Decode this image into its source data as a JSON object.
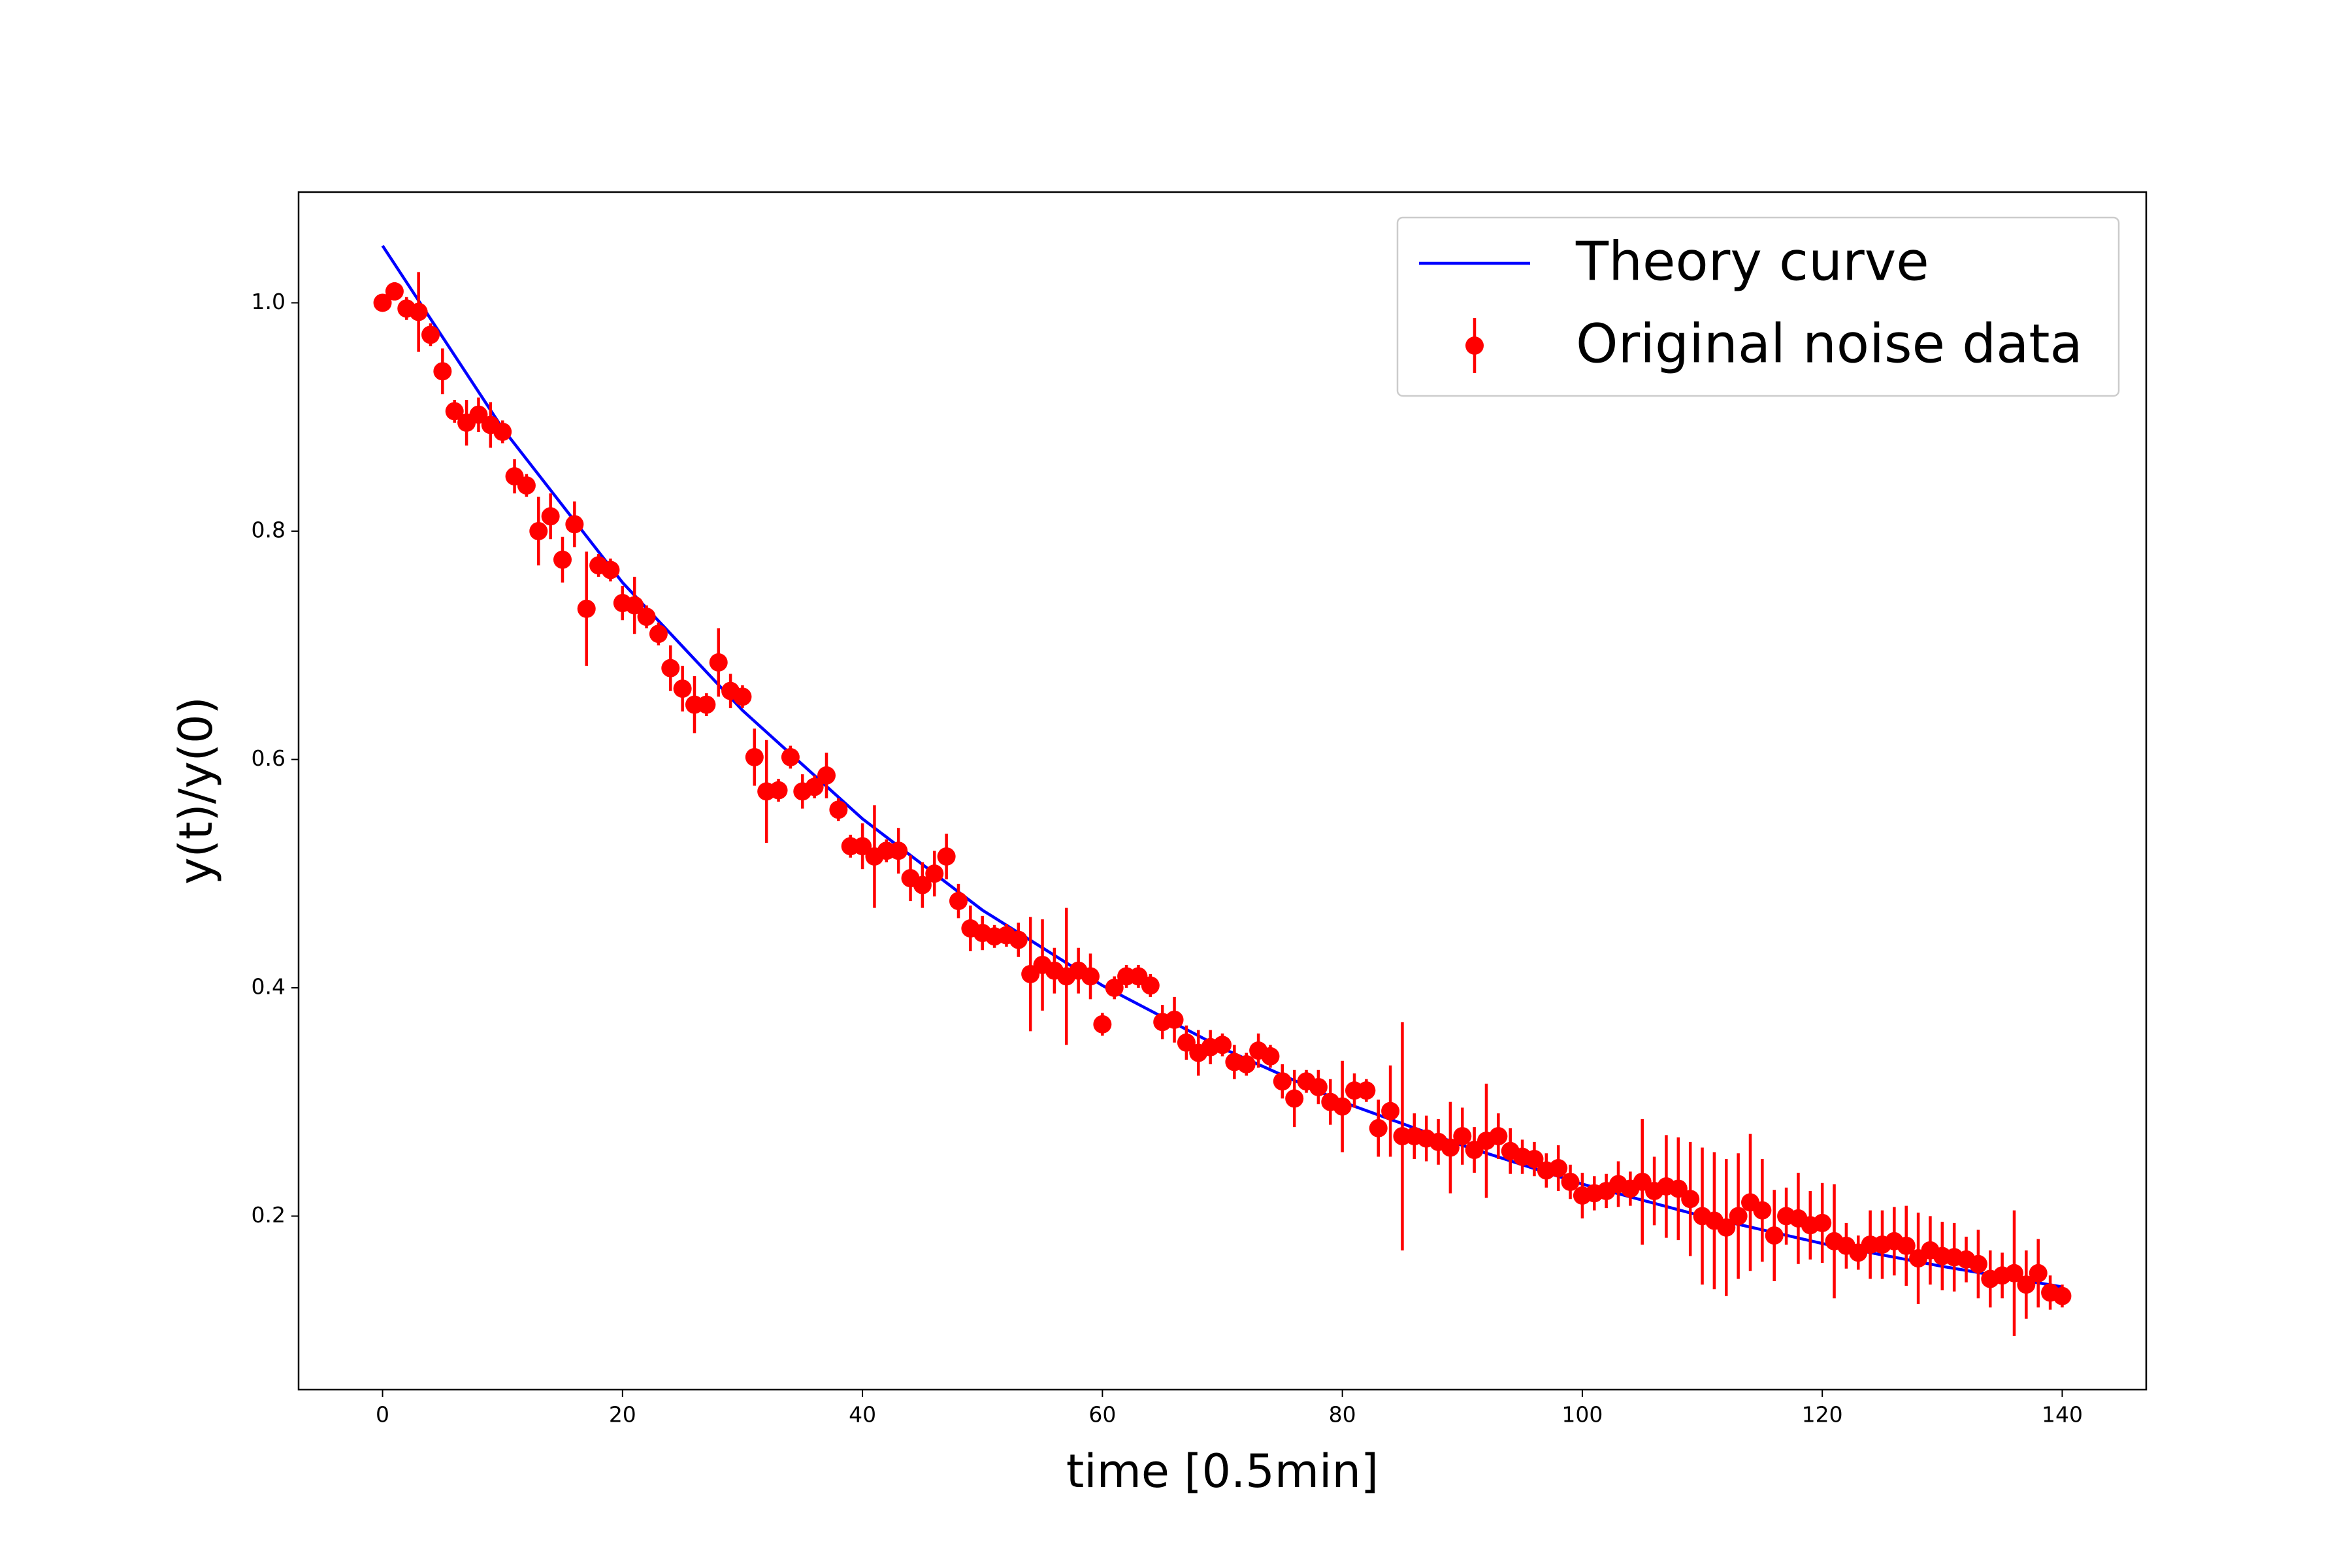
{
  "chart_data": {
    "type": "scatter",
    "xlabel": "time [0.5min]",
    "ylabel": "y(t)/y(0)",
    "xlim": [
      -7,
      147
    ],
    "ylim": [
      0.048,
      1.097
    ],
    "xticks": [
      0,
      20,
      40,
      60,
      80,
      100,
      120,
      140
    ],
    "yticks": [
      0.2,
      0.4,
      0.6,
      0.8,
      {
        "value": 1,
        "label": "1.0"
      }
    ],
    "legend": "upper right",
    "series": [
      {
        "name": "Theory curve",
        "type": "line",
        "color": "#0000ff",
        "x": [
          0,
          10,
          20,
          30,
          40,
          50,
          60,
          70,
          80,
          90,
          100,
          110,
          120,
          130,
          140
        ],
        "values": [
          1.05,
          0.89,
          0.755,
          0.643,
          0.548,
          0.468,
          0.402,
          0.347,
          0.3,
          0.262,
          0.228,
          0.2,
          0.176,
          0.156,
          0.138
        ]
      },
      {
        "name": "Original noise data",
        "type": "errorbar",
        "color": "#ff0000",
        "x": [
          0,
          1,
          2,
          3,
          4,
          5,
          6,
          7,
          8,
          9,
          10,
          11,
          12,
          13,
          14,
          15,
          16,
          17,
          18,
          19,
          20,
          21,
          22,
          23,
          24,
          25,
          26,
          27,
          28,
          29,
          30,
          31,
          32,
          33,
          34,
          35,
          36,
          37,
          38,
          39,
          40,
          41,
          42,
          43,
          44,
          45,
          46,
          47,
          48,
          49,
          50,
          51,
          52,
          53,
          54,
          55,
          56,
          57,
          58,
          59,
          60,
          61,
          62,
          63,
          64,
          65,
          66,
          67,
          68,
          69,
          70,
          71,
          72,
          73,
          74,
          75,
          76,
          77,
          78,
          79,
          80,
          81,
          82,
          83,
          84,
          85,
          86,
          87,
          88,
          89,
          90,
          91,
          92,
          93,
          94,
          95,
          96,
          97,
          98,
          99,
          100,
          101,
          102,
          103,
          104,
          105,
          106,
          107,
          108,
          109,
          110,
          111,
          112,
          113,
          114,
          115,
          116,
          117,
          118,
          119,
          120,
          121,
          122,
          123,
          124,
          125,
          126,
          127,
          128,
          129,
          130,
          131,
          132,
          133,
          134,
          135,
          136,
          137,
          138,
          139,
          140
        ],
        "values": [
          1.0,
          1.01,
          0.995,
          0.992,
          0.972,
          0.94,
          0.905,
          0.895,
          0.902,
          0.893,
          0.887,
          0.848,
          0.84,
          0.8,
          0.813,
          0.775,
          0.806,
          0.732,
          0.77,
          0.766,
          0.737,
          0.735,
          0.725,
          0.71,
          0.68,
          0.662,
          0.648,
          0.648,
          0.685,
          0.66,
          0.655,
          0.602,
          0.572,
          0.573,
          0.602,
          0.572,
          0.576,
          0.586,
          0.556,
          0.524,
          0.524,
          0.515,
          0.52,
          0.52,
          0.496,
          0.49,
          0.5,
          0.515,
          0.476,
          0.452,
          0.448,
          0.445,
          0.446,
          0.442,
          0.412,
          0.42,
          0.415,
          0.41,
          0.415,
          0.41,
          0.368,
          0.4,
          0.41,
          0.41,
          0.402,
          0.37,
          0.372,
          0.352,
          0.343,
          0.348,
          0.35,
          0.335,
          0.333,
          0.345,
          0.34,
          0.318,
          0.303,
          0.318,
          0.313,
          0.3,
          0.296,
          0.31,
          0.31,
          0.277,
          0.292,
          0.27,
          0.27,
          0.268,
          0.265,
          0.26,
          0.27,
          0.258,
          0.266,
          0.27,
          0.257,
          0.252,
          0.25,
          0.24,
          0.242,
          0.23,
          0.218,
          0.22,
          0.222,
          0.228,
          0.224,
          0.23,
          0.222,
          0.226,
          0.224,
          0.215,
          0.2,
          0.196,
          0.19,
          0.2,
          0.212,
          0.205,
          0.183,
          0.2,
          0.198,
          0.192,
          0.194,
          0.178,
          0.174,
          0.168,
          0.175,
          0.175,
          0.178,
          0.174,
          0.163,
          0.17,
          0.165,
          0.164,
          0.162,
          0.158,
          0.145,
          0.148,
          0.15,
          0.14,
          0.15,
          0.133,
          0.13
        ],
        "errors": [
          0.005,
          0.008,
          0.01,
          0.035,
          0.01,
          0.02,
          0.01,
          0.02,
          0.015,
          0.02,
          0.01,
          0.015,
          0.01,
          0.03,
          0.02,
          0.02,
          0.02,
          0.05,
          0.01,
          0.01,
          0.015,
          0.025,
          0.01,
          0.01,
          0.02,
          0.02,
          0.025,
          0.01,
          0.03,
          0.015,
          0.01,
          0.025,
          0.045,
          0.01,
          0.01,
          0.015,
          0.01,
          0.02,
          0.01,
          0.01,
          0.02,
          0.045,
          0.01,
          0.02,
          0.02,
          0.02,
          0.02,
          0.02,
          0.015,
          0.02,
          0.015,
          0.01,
          0.01,
          0.015,
          0.05,
          0.04,
          0.02,
          0.06,
          0.02,
          0.02,
          0.01,
          0.01,
          0.01,
          0.01,
          0.01,
          0.015,
          0.02,
          0.015,
          0.02,
          0.015,
          0.01,
          0.015,
          0.01,
          0.015,
          0.01,
          0.015,
          0.025,
          0.01,
          0.015,
          0.02,
          0.04,
          0.015,
          0.01,
          0.025,
          0.04,
          0.1,
          0.02,
          0.02,
          0.02,
          0.04,
          0.025,
          0.02,
          0.05,
          0.02,
          0.02,
          0.015,
          0.015,
          0.015,
          0.02,
          0.015,
          0.02,
          0.015,
          0.015,
          0.02,
          0.015,
          0.055,
          0.03,
          0.045,
          0.045,
          0.05,
          0.06,
          0.06,
          0.06,
          0.055,
          0.06,
          0.045,
          0.04,
          0.025,
          0.04,
          0.03,
          0.035,
          0.05,
          0.02,
          0.015,
          0.03,
          0.03,
          0.03,
          0.035,
          0.04,
          0.03,
          0.03,
          0.03,
          0.02,
          0.03,
          0.025,
          0.02,
          0.055,
          0.03,
          0.03,
          0.015,
          0.01
        ]
      }
    ]
  }
}
